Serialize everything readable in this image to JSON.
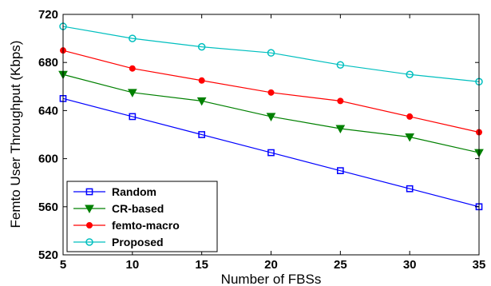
{
  "chart_data": {
    "type": "line",
    "title": "",
    "xlabel": "Number of FBSs",
    "ylabel": "Femto User Throughput (Kbps)",
    "x": [
      5,
      10,
      15,
      20,
      25,
      30,
      35
    ],
    "xlim": [
      5,
      35
    ],
    "ylim": [
      520,
      720
    ],
    "xticks": [
      5,
      10,
      15,
      20,
      25,
      30,
      35
    ],
    "yticks": [
      520,
      560,
      600,
      640,
      680,
      720
    ],
    "grid": false,
    "legend_position": "bottom-left",
    "series": [
      {
        "name": "Random",
        "color": "#0000ff",
        "marker": "square",
        "values": [
          650,
          635,
          620,
          605,
          590,
          575,
          560
        ]
      },
      {
        "name": "CR-based",
        "color": "#008000",
        "marker": "triangle-down",
        "values": [
          670,
          655,
          648,
          635,
          625,
          618,
          605
        ]
      },
      {
        "name": "femto-macro",
        "color": "#ff0000",
        "marker": "circle-filled",
        "values": [
          690,
          675,
          665,
          655,
          648,
          635,
          622
        ]
      },
      {
        "name": "Proposed",
        "color": "#00bfbf",
        "marker": "circle-open",
        "values": [
          710,
          700,
          693,
          688,
          678,
          670,
          664
        ]
      }
    ]
  }
}
